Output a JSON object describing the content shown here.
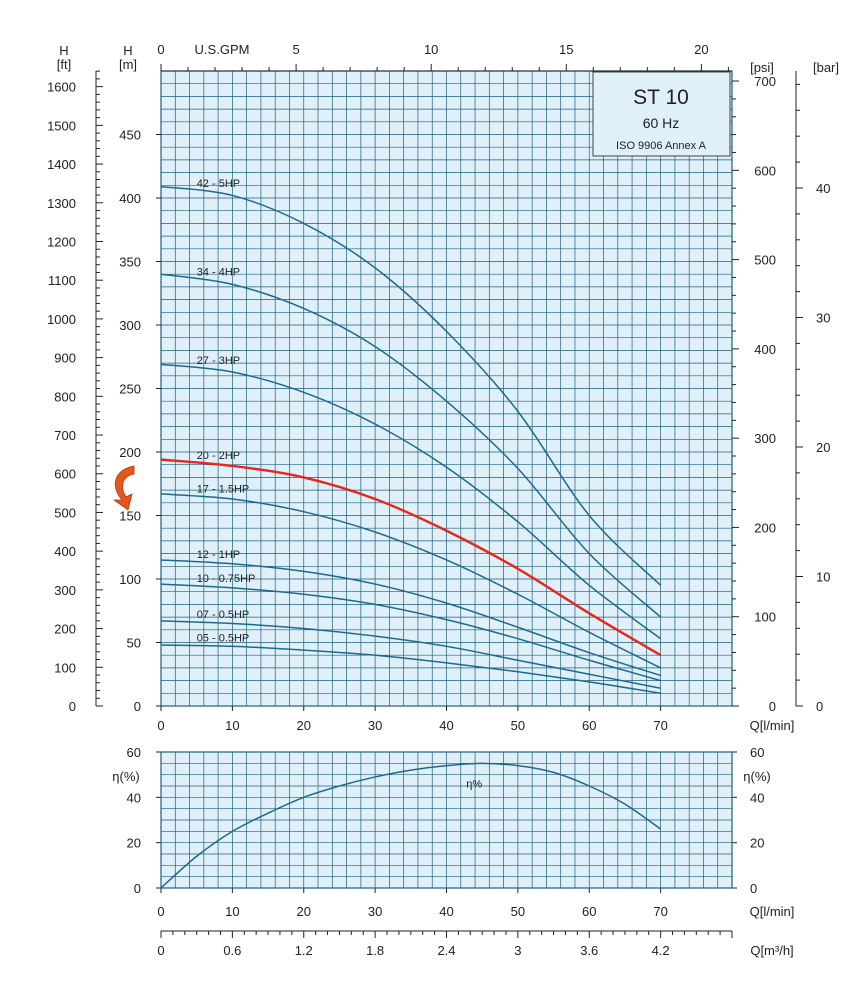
{
  "colors": {
    "plot_background": "#dff0f8",
    "grid": "#1f5f7f",
    "curve": "#1d6a8f",
    "highlight_curve": "#e8261b",
    "arrow": "#e8541b"
  },
  "info_box": {
    "title": "ST 10",
    "frequency": "60 Hz",
    "standard": "ISO 9906 Annex A"
  },
  "chart_data": [
    {
      "type": "line",
      "title": "ST 10",
      "axes": {
        "x_bottom": {
          "label": "Q[l/min]",
          "range": [
            0,
            80
          ],
          "ticks": [
            0,
            10,
            20,
            30,
            40,
            50,
            60,
            70
          ]
        },
        "x_top": {
          "label": "U.S.GPM",
          "ticks": [
            0,
            5,
            10,
            15,
            20
          ]
        },
        "y_left": {
          "label": "H [m]",
          "range": [
            0,
            500
          ],
          "ticks": [
            0,
            50,
            100,
            150,
            200,
            250,
            300,
            350,
            400,
            450
          ]
        },
        "y_left_outer": {
          "label": "H [ft]",
          "ticks": [
            0,
            100,
            200,
            300,
            400,
            500,
            600,
            700,
            800,
            900,
            1000,
            1100,
            1200,
            1300,
            1400,
            1500,
            1600
          ]
        },
        "y_right_psi": {
          "label": "[psi]",
          "ticks": [
            0,
            100,
            200,
            300,
            400,
            500,
            600,
            700
          ]
        },
        "y_right_bar": {
          "label": "[bar]",
          "ticks": [
            0,
            10,
            20,
            30,
            40
          ]
        }
      },
      "grid": true,
      "series": [
        {
          "name": "42 - 5HP",
          "x": [
            0,
            10,
            20,
            30,
            40,
            50,
            60,
            70
          ],
          "y": [
            409,
            402,
            380,
            345,
            295,
            232,
            150,
            95
          ],
          "label_at_x": 5
        },
        {
          "name": "34 - 4HP",
          "x": [
            0,
            10,
            20,
            30,
            40,
            50,
            60,
            70
          ],
          "y": [
            340,
            332,
            313,
            283,
            240,
            187,
            120,
            70
          ],
          "label_at_x": 5
        },
        {
          "name": "27 - 3HP",
          "x": [
            0,
            10,
            20,
            30,
            40,
            50,
            60,
            70
          ],
          "y": [
            269,
            263,
            247,
            222,
            188,
            145,
            95,
            53
          ],
          "label_at_x": 5
        },
        {
          "name": "20 - 2HP",
          "highlighted": true,
          "x": [
            0,
            10,
            20,
            30,
            40,
            50,
            60,
            70
          ],
          "y": [
            194,
            189,
            180,
            163,
            138,
            108,
            73,
            40
          ],
          "label_at_x": 5
        },
        {
          "name": "17 - 1.5HP",
          "x": [
            0,
            10,
            20,
            30,
            40,
            50,
            60,
            70
          ],
          "y": [
            167,
            163,
            153,
            137,
            115,
            88,
            58,
            30
          ],
          "label_at_x": 5
        },
        {
          "name": "12 - 1HP",
          "x": [
            0,
            10,
            20,
            30,
            40,
            50,
            60,
            70
          ],
          "y": [
            115,
            112,
            106,
            96,
            81,
            62,
            42,
            24
          ],
          "label_at_x": 5
        },
        {
          "name": "10 - 0.75HP",
          "x": [
            0,
            10,
            20,
            30,
            40,
            50,
            60,
            70
          ],
          "y": [
            96,
            93,
            88,
            80,
            68,
            53,
            36,
            20
          ],
          "label_at_x": 5
        },
        {
          "name": "07 - 0.5HP",
          "x": [
            0,
            10,
            20,
            30,
            40,
            50,
            60,
            70
          ],
          "y": [
            67,
            65,
            61,
            55,
            47,
            36,
            25,
            14
          ],
          "label_at_x": 5
        },
        {
          "name": "05 - 0.5HP",
          "x": [
            0,
            10,
            20,
            30,
            40,
            50,
            60,
            70
          ],
          "y": [
            48,
            47,
            44,
            40,
            34,
            27,
            19,
            10
          ],
          "label_at_x": 5
        }
      ]
    },
    {
      "type": "line",
      "axes": {
        "x_bottom": {
          "label": "Q[l/min]",
          "range": [
            0,
            80
          ],
          "ticks": [
            0,
            10,
            20,
            30,
            40,
            50,
            60,
            70
          ]
        },
        "x_flow_m3h": {
          "label": "Q[m³/h]",
          "ticks": [
            "0",
            "0.6",
            "1.2",
            "1.8",
            "2.4",
            "3",
            "3.6",
            "4.2"
          ]
        },
        "y_left": {
          "label": "η(%)",
          "range": [
            0,
            60
          ],
          "ticks": [
            0,
            20,
            40,
            60
          ]
        },
        "y_right": {
          "label": "η(%)",
          "ticks": [
            0,
            20,
            40,
            60
          ]
        }
      },
      "grid": true,
      "series": [
        {
          "name": "η%",
          "x": [
            0,
            5,
            10,
            15,
            20,
            25,
            30,
            35,
            40,
            45,
            50,
            55,
            60,
            65,
            70
          ],
          "y": [
            0,
            14,
            25,
            33,
            40,
            45,
            49,
            52,
            54,
            55,
            54,
            51,
            45,
            37,
            26
          ],
          "label_at_x": 45
        }
      ]
    }
  ]
}
